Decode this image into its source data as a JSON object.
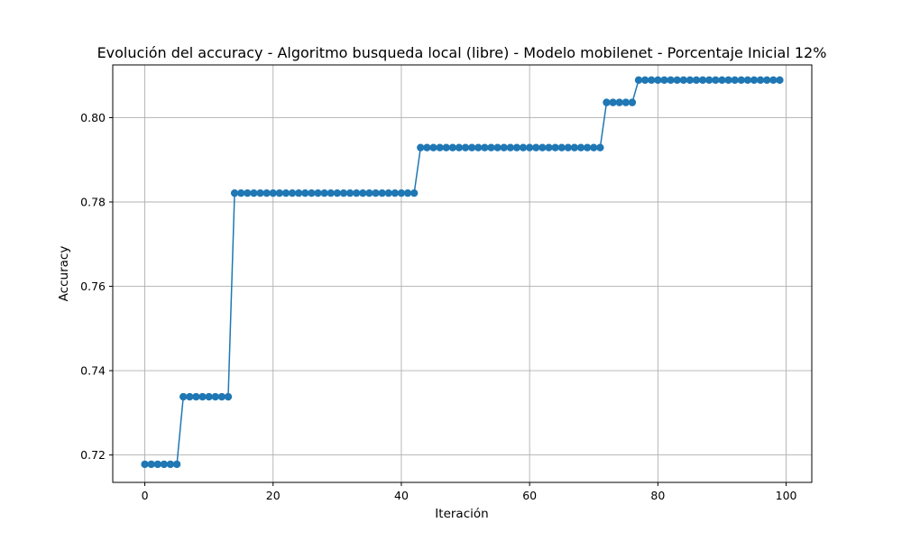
{
  "colors": {
    "series": "#1f77b4",
    "grid": "#b0b0b0",
    "axis": "#000000",
    "background": "#ffffff"
  },
  "chart_data": {
    "type": "line",
    "title": "Evolución del accuracy - Algoritmo busqueda local (libre) - Modelo mobilenet - Porcentaje Inicial 12%",
    "xlabel": "Iteración",
    "ylabel": "Accuracy",
    "xlim": [
      -5,
      104
    ],
    "ylim": [
      0.7135,
      0.8125
    ],
    "xticks": [
      0,
      20,
      40,
      60,
      80,
      100
    ],
    "xtick_labels": [
      "0",
      "20",
      "40",
      "60",
      "80",
      "100"
    ],
    "yticks": [
      0.72,
      0.74,
      0.76,
      0.78,
      0.8
    ],
    "ytick_labels": [
      "0.72",
      "0.74",
      "0.76",
      "0.78",
      "0.80"
    ],
    "grid": true,
    "marker": "circle",
    "series": [
      {
        "segments": [
          {
            "from": 0,
            "to": 5,
            "value": 0.7178
          },
          {
            "from": 6,
            "to": 13,
            "value": 0.7338
          },
          {
            "from": 14,
            "to": 42,
            "value": 0.7821
          },
          {
            "from": 43,
            "to": 71,
            "value": 0.7929
          },
          {
            "from": 72,
            "to": 76,
            "value": 0.8036
          },
          {
            "from": 77,
            "to": 99,
            "value": 0.8089
          }
        ]
      }
    ]
  }
}
